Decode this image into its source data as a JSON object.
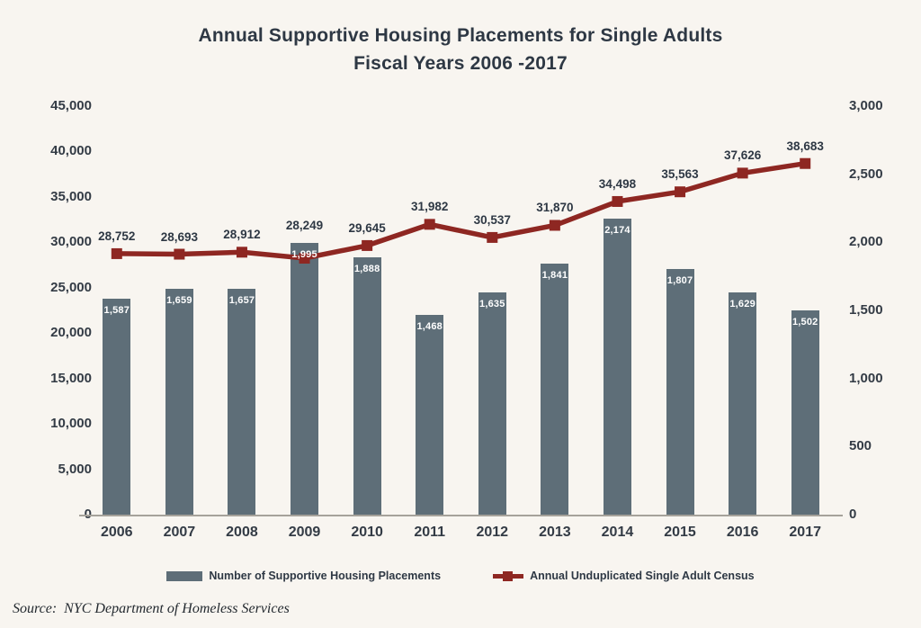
{
  "header": {
    "title_line1": "Annual Supportive Housing Placements for Single Adults",
    "title_line2": "Fiscal Years 2006 -2017"
  },
  "chart_data": {
    "type": "bar",
    "subtype": "combo-bar-line",
    "title": "Annual Supportive Housing Placements for Single Adults Fiscal Years 2006 -2017",
    "categories": [
      "2006",
      "2007",
      "2008",
      "2009",
      "2010",
      "2011",
      "2012",
      "2013",
      "2014",
      "2015",
      "2016",
      "2017"
    ],
    "series": [
      {
        "name": "Number of Supportive Housing Placements",
        "type": "bar",
        "axis": "right",
        "color": "#5e6e78",
        "values": [
          1587,
          1659,
          1657,
          1995,
          1888,
          1468,
          1635,
          1841,
          2174,
          1807,
          1629,
          1502
        ]
      },
      {
        "name": "Annual Unduplicated Single Adult Census",
        "type": "line",
        "axis": "left",
        "color": "#8e2722",
        "values": [
          28752,
          28693,
          28912,
          28249,
          29645,
          31982,
          30537,
          31870,
          34498,
          35563,
          37626,
          38683
        ]
      }
    ],
    "left_axis": {
      "min": 0,
      "max": 45000,
      "step": 5000
    },
    "right_axis": {
      "min": 0,
      "max": 3000,
      "step": 500
    },
    "grid": false,
    "legend_position": "bottom",
    "data_labels": true
  },
  "colors": {
    "background": "#f8f5f0",
    "bar": "#5e6e78",
    "line": "#8e2722",
    "text_dark": "#2e3844",
    "bar_label": "#ffffff",
    "axis_line": "#a6a29a"
  },
  "footer": {
    "source": "Source:  NYC Department of Homeless Services"
  }
}
